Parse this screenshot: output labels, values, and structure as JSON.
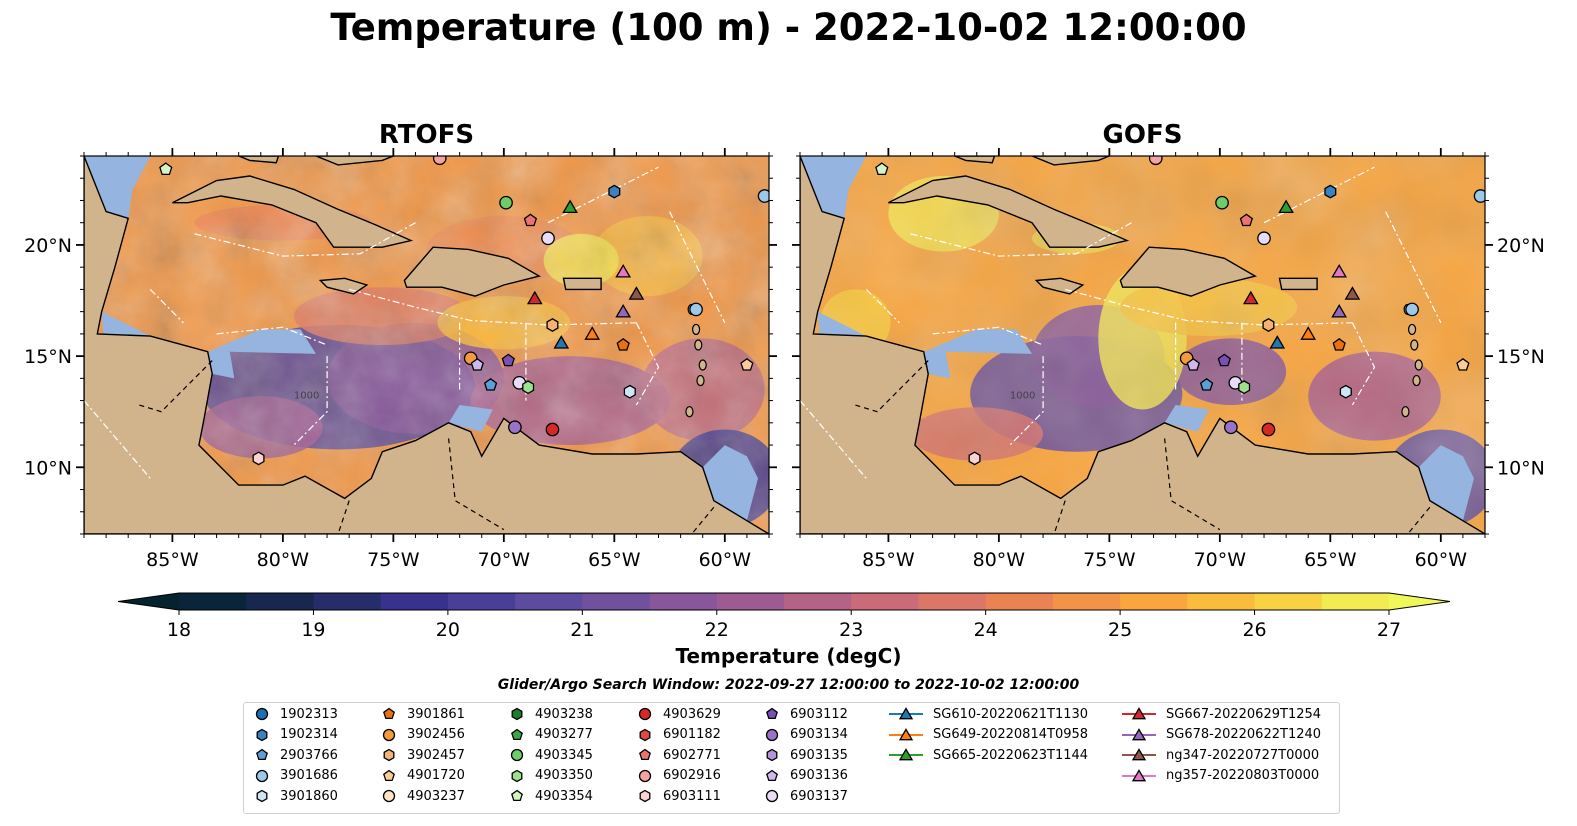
{
  "title": "Temperature (100 m) - 2022-10-02 12:00:00",
  "panels": [
    {
      "id": "rtofs",
      "title": "RTOFS"
    },
    {
      "id": "gofs",
      "title": "GOFS"
    }
  ],
  "map": {
    "lon_range": [
      -89,
      -58
    ],
    "lat_range": [
      7,
      24
    ],
    "lon_ticks": [
      "85°W",
      "80°W",
      "75°W",
      "70°W",
      "65°W",
      "60°W"
    ],
    "lat_ticks": [
      "10°N",
      "15°N",
      "20°N"
    ],
    "ocean_color": "#95b4df",
    "land_color": "#d2b48c",
    "contour_label": "1000"
  },
  "colorbar": {
    "label": "Temperature (degC)",
    "min": 18,
    "max": 27,
    "step": 0.5,
    "ticks": [
      "18",
      "19",
      "20",
      "21",
      "22",
      "23",
      "24",
      "25",
      "26",
      "27"
    ],
    "colormap": "thermal",
    "extend": "both"
  },
  "search_window": "Glider/Argo Search Window: 2022-09-27 12:00:00 to 2022-10-02 12:00:00",
  "legend": [
    [
      "1902313",
      "circle",
      "#1f6fb4"
    ],
    [
      "1902314",
      "hexagon",
      "#3a82c0"
    ],
    [
      "2903766",
      "pentagon",
      "#5c9fd6"
    ],
    [
      "3901686",
      "circle",
      "#9cc9ea"
    ],
    [
      "3901860",
      "hexagon",
      "#cfe5f5"
    ],
    [
      "3901861",
      "pentagon",
      "#e8720c"
    ],
    [
      "3902456",
      "circle",
      "#f39a3c"
    ],
    [
      "3902457",
      "hexagon",
      "#f6b272"
    ],
    [
      "4901720",
      "pentagon",
      "#f9cc9a"
    ],
    [
      "4903237",
      "circle",
      "#fde5c6"
    ],
    [
      "4903238",
      "hexagon",
      "#1e7d2c"
    ],
    [
      "4903277",
      "pentagon",
      "#3aa84a"
    ],
    [
      "4903345",
      "circle",
      "#6fcc6a"
    ],
    [
      "4903350",
      "hexagon",
      "#9fe08e"
    ],
    [
      "4903354",
      "pentagon",
      "#d4f5c2"
    ],
    [
      "4903629",
      "circle",
      "#d62828"
    ],
    [
      "6901182",
      "hexagon",
      "#e04848"
    ],
    [
      "6902771",
      "pentagon",
      "#ef7272"
    ],
    [
      "6902916",
      "circle",
      "#f5a2a2"
    ],
    [
      "6903111",
      "hexagon",
      "#fbd2d2"
    ],
    [
      "6903112",
      "pentagon",
      "#7b4fb8"
    ],
    [
      "6903134",
      "circle",
      "#9a73c9"
    ],
    [
      "6903135",
      "hexagon",
      "#b596dc"
    ],
    [
      "6903136",
      "pentagon",
      "#cfb8ec"
    ],
    [
      "6903137",
      "circle",
      "#e8dcf7"
    ],
    [
      "SG610-20220621T1130",
      "triangle",
      "#1f77b4"
    ],
    [
      "SG649-20220814T0958",
      "triangle",
      "#ff7f0e"
    ],
    [
      "SG665-20220623T1144",
      "triangle",
      "#2ca02c"
    ],
    [
      "SG667-20220629T1254",
      "triangle",
      "#d62728"
    ],
    [
      "SG678-20220622T1240",
      "triangle",
      "#9467bd"
    ],
    [
      "ng347-20220727T0000",
      "triangle",
      "#8c564b"
    ],
    [
      "ng357-20220803T0000",
      "triangle",
      "#e377c2"
    ]
  ],
  "markers": [
    [
      "4903354",
      -85.3,
      23.4
    ],
    [
      "6902916",
      -72.9,
      23.9
    ],
    [
      "1902314",
      -65.0,
      22.4
    ],
    [
      "3901686",
      -58.2,
      22.2
    ],
    [
      "4903345",
      -69.9,
      21.9
    ],
    [
      "SG665-20220623T1144",
      -67.0,
      21.7
    ],
    [
      "6902771",
      -68.8,
      21.1
    ],
    [
      "6903137",
      -68.0,
      20.3
    ],
    [
      "ng357-20220803T0000",
      -64.6,
      18.8
    ],
    [
      "ng347-20220727T0000",
      -64.0,
      17.8
    ],
    [
      "SG667-20220629T1254",
      -68.6,
      17.6
    ],
    [
      "SG678-20220622T1240",
      -64.6,
      17.0
    ],
    [
      "3901686",
      -61.3,
      17.1
    ],
    [
      "3902457",
      -67.8,
      16.4
    ],
    [
      "SG649-20220814T0958",
      -66.0,
      16.0
    ],
    [
      "3901861",
      -64.6,
      15.5
    ],
    [
      "SG610-20220621T1130",
      -67.4,
      15.6
    ],
    [
      "3902456",
      -71.5,
      14.9
    ],
    [
      "6903136",
      -71.2,
      14.6
    ],
    [
      "6903112",
      -69.8,
      14.8
    ],
    [
      "4901720",
      -59.0,
      14.6
    ],
    [
      "2903766",
      -70.6,
      13.7
    ],
    [
      "6903137",
      -69.3,
      13.8
    ],
    [
      "4903350",
      -68.9,
      13.6
    ],
    [
      "3901860",
      -64.3,
      13.4
    ],
    [
      "6903134",
      -69.5,
      11.8
    ],
    [
      "4903629",
      -67.8,
      11.7
    ],
    [
      "6903111",
      -81.1,
      10.4
    ]
  ]
}
